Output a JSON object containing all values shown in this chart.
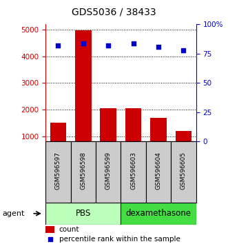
{
  "title": "GDS5036 / 38433",
  "samples": [
    "GSM596597",
    "GSM596598",
    "GSM596599",
    "GSM596603",
    "GSM596604",
    "GSM596605"
  ],
  "counts": [
    1520,
    4980,
    2060,
    2060,
    1700,
    1200
  ],
  "percentiles": [
    82,
    84,
    82,
    84,
    81,
    78
  ],
  "bar_color": "#cc0000",
  "dot_color": "#0000cc",
  "left_ylim": [
    800,
    5200
  ],
  "left_yticks": [
    1000,
    2000,
    3000,
    4000,
    5000
  ],
  "right_ylim": [
    0,
    100
  ],
  "right_yticks": [
    0,
    25,
    50,
    75,
    100
  ],
  "right_yticklabels": [
    "0",
    "25",
    "50",
    "75",
    "100%"
  ],
  "group1_label": "PBS",
  "group2_label": "dexamethasone",
  "group1_indices": [
    0,
    1,
    2
  ],
  "group2_indices": [
    3,
    4,
    5
  ],
  "agent_label": "agent",
  "legend_count": "count",
  "legend_percentile": "percentile rank within the sample",
  "left_axis_color": "#cc0000",
  "right_axis_color": "#0000cc",
  "group1_color": "#bbffbb",
  "group2_color": "#44dd44",
  "sample_bg_color": "#cccccc",
  "bg_color": "#ffffff"
}
